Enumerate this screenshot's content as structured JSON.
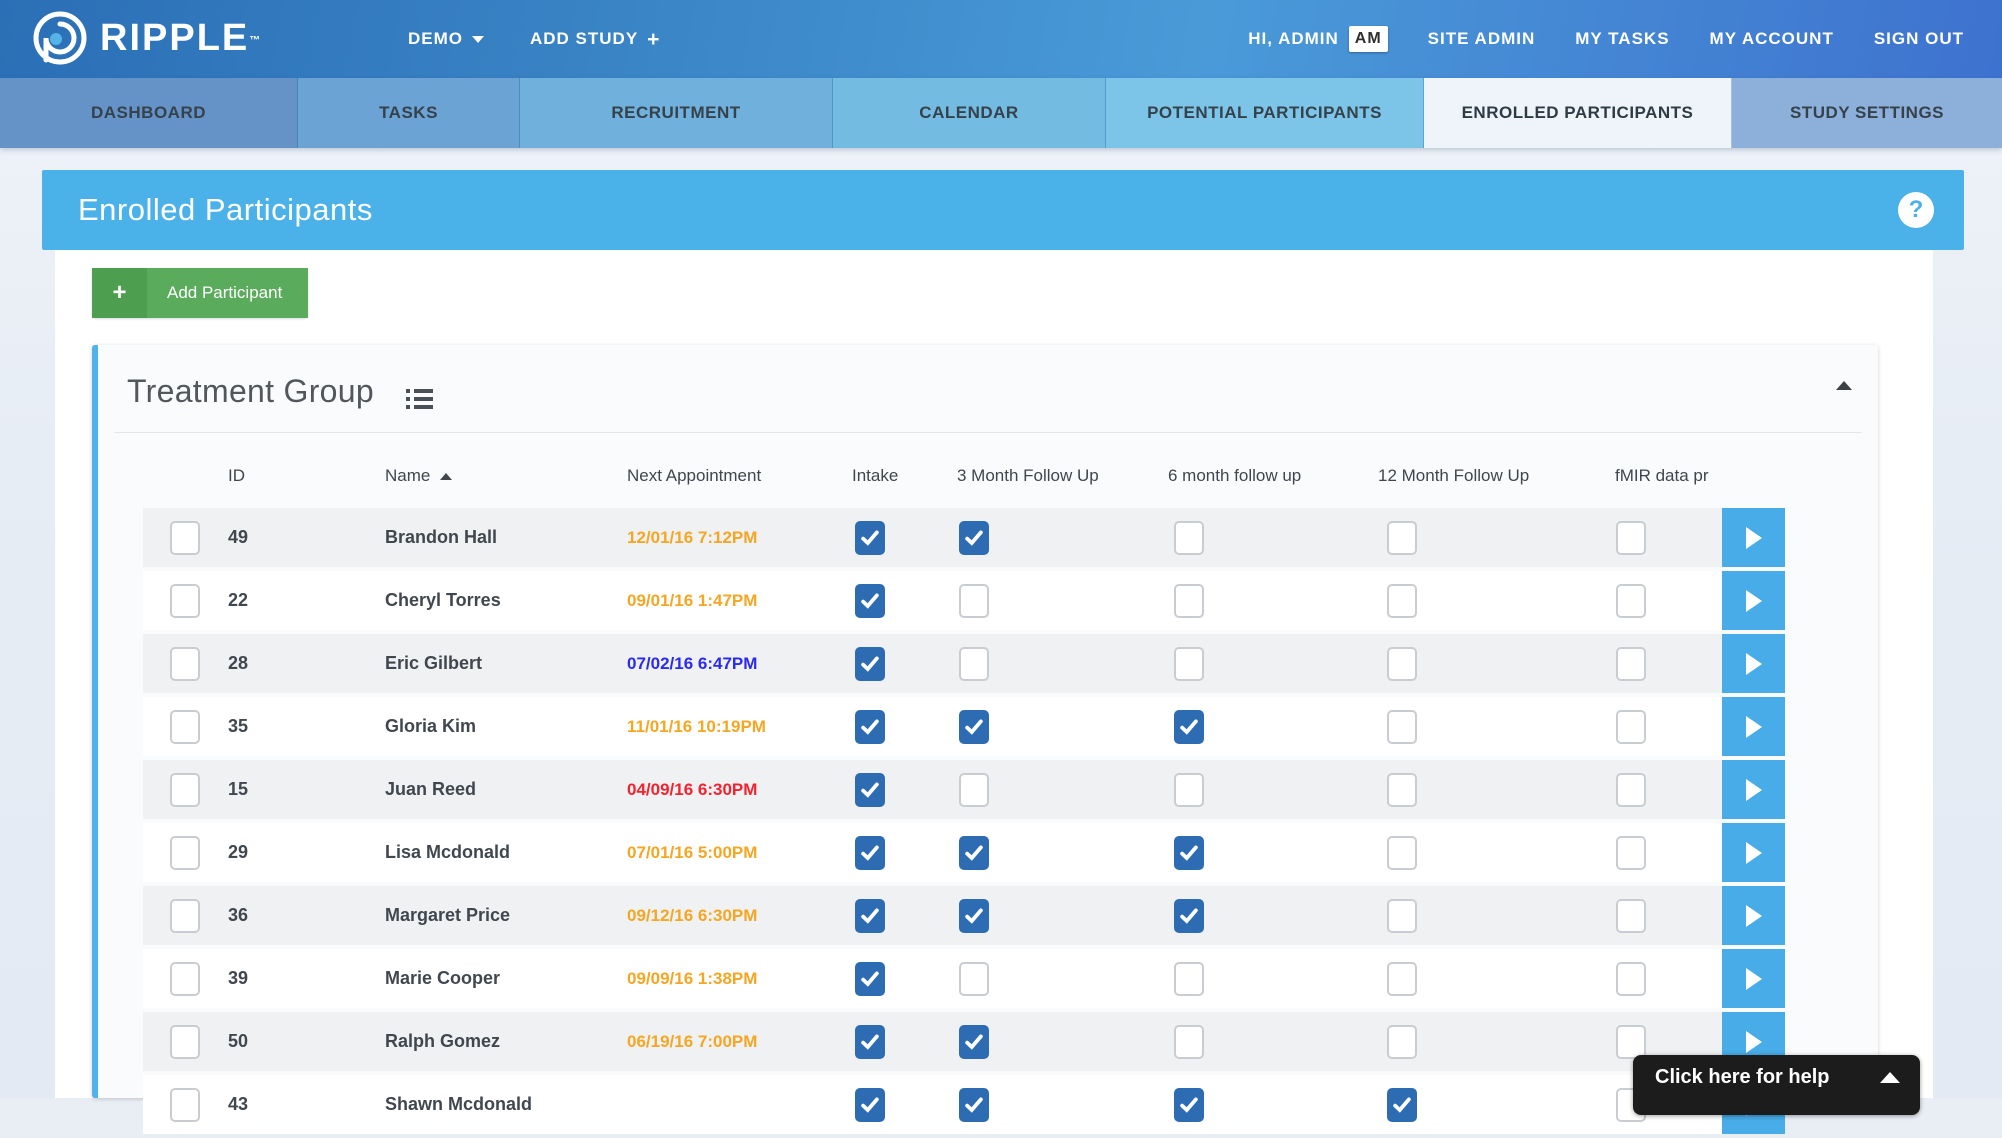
{
  "brand": {
    "name": "RIPPLE",
    "tm": "™"
  },
  "nav": {
    "study_menu": "DEMO",
    "add_study": "ADD STUDY",
    "greeting": "HI, ADMIN",
    "avatar_initials": "AM",
    "right_items": [
      "SITE ADMIN",
      "MY TASKS",
      "MY ACCOUNT",
      "SIGN OUT"
    ]
  },
  "tabs": [
    {
      "label": "DASHBOARD",
      "active": false
    },
    {
      "label": "TASKS",
      "active": false
    },
    {
      "label": "RECRUITMENT",
      "active": false
    },
    {
      "label": "CALENDAR",
      "active": false
    },
    {
      "label": "POTENTIAL PARTICIPANTS",
      "active": false
    },
    {
      "label": "ENROLLED PARTICIPANTS",
      "active": true
    },
    {
      "label": "STUDY SETTINGS",
      "active": false
    }
  ],
  "page_header": {
    "title": "Enrolled Participants",
    "help_glyph": "?"
  },
  "toolbar": {
    "add_participant_label": "Add Participant",
    "plus_glyph": "+"
  },
  "group": {
    "title": "Treatment Group"
  },
  "table": {
    "columns": [
      "ID",
      "Name",
      "Next Appointment",
      "Intake",
      "3 Month Follow Up",
      "6 month follow up",
      "12 Month Follow Up",
      "fMIR data pr"
    ],
    "sort_column": "Name",
    "sort_direction": "asc",
    "rows": [
      {
        "id": "49",
        "name": "Brandon Hall",
        "next_appointment": "12/01/16 7:12PM",
        "appt_color": "orange",
        "checks": [
          1,
          1,
          0,
          0,
          0
        ]
      },
      {
        "id": "22",
        "name": "Cheryl Torres",
        "next_appointment": "09/01/16 1:47PM",
        "appt_color": "orange",
        "checks": [
          1,
          0,
          0,
          0,
          0
        ]
      },
      {
        "id": "28",
        "name": "Eric Gilbert",
        "next_appointment": "07/02/16 6:47PM",
        "appt_color": "blue",
        "checks": [
          1,
          0,
          0,
          0,
          0
        ]
      },
      {
        "id": "35",
        "name": "Gloria Kim",
        "next_appointment": "11/01/16 10:19PM",
        "appt_color": "orange",
        "checks": [
          1,
          1,
          1,
          0,
          0
        ]
      },
      {
        "id": "15",
        "name": "Juan Reed",
        "next_appointment": "04/09/16 6:30PM",
        "appt_color": "red",
        "checks": [
          1,
          0,
          0,
          0,
          0
        ]
      },
      {
        "id": "29",
        "name": "Lisa Mcdonald",
        "next_appointment": "07/01/16 5:00PM",
        "appt_color": "orange",
        "checks": [
          1,
          1,
          1,
          0,
          0
        ]
      },
      {
        "id": "36",
        "name": "Margaret Price",
        "next_appointment": "09/12/16 6:30PM",
        "appt_color": "orange",
        "checks": [
          1,
          1,
          1,
          0,
          0
        ]
      },
      {
        "id": "39",
        "name": "Marie Cooper",
        "next_appointment": "09/09/16 1:38PM",
        "appt_color": "orange",
        "checks": [
          1,
          0,
          0,
          0,
          0
        ]
      },
      {
        "id": "50",
        "name": "Ralph Gomez",
        "next_appointment": "06/19/16 7:00PM",
        "appt_color": "orange",
        "checks": [
          1,
          1,
          0,
          0,
          0
        ]
      },
      {
        "id": "43",
        "name": "Shawn Mcdonald",
        "next_appointment": "",
        "appt_color": "orange",
        "checks": [
          1,
          1,
          1,
          1,
          0
        ]
      }
    ]
  },
  "help_bar": {
    "label": "Click here for help"
  },
  "colors": {
    "orange": "#f5a623",
    "red": "#f2232e",
    "blue": "#2a2af0",
    "header_blue": "#4bb1e9",
    "checked_blue": "#2d6cb3",
    "arrow_blue": "#47ace8",
    "green": "#5aab5c",
    "tab_fills": [
      "#6593c8",
      "#6ba3d4",
      "#6fb0dc",
      "#74bbe2",
      "#7cc5e8",
      "#eef4f9",
      "#8cb0d9"
    ],
    "tab_widths": [
      298,
      222,
      313,
      273,
      318,
      308,
      270
    ]
  }
}
